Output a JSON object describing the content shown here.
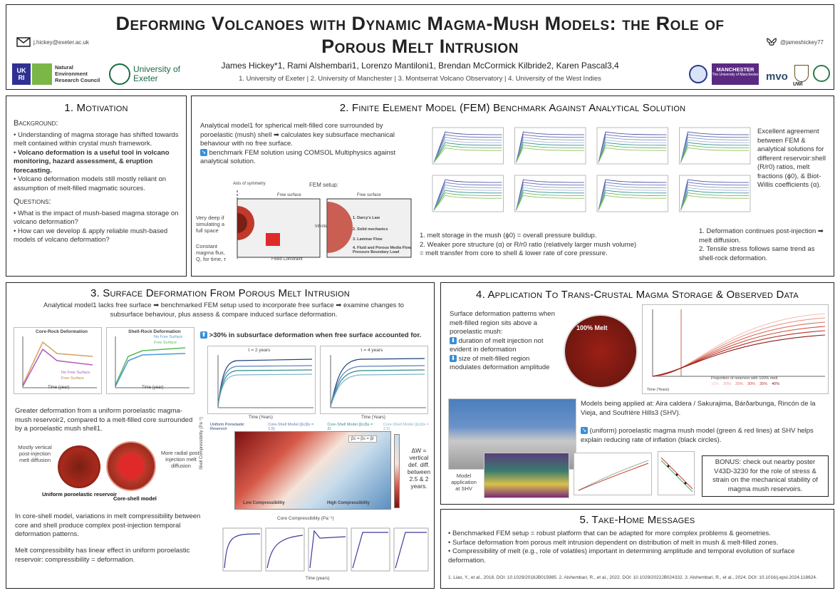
{
  "header": {
    "title_line1": "Deforming Volcanoes with Dynamic Magma-Mush Models: the Role of",
    "title_line2": "Porous Melt Intrusion",
    "email": "j.hickey@exeter.ac.uk",
    "handle": "@jameshickey77",
    "authors": "James Hickey*1, Rami Alshembari1, Lorenzo Mantiloni1, Brendan McCormick Kilbride2, Karen Pascal3,4",
    "affiliations": "1. University of Exeter | 2. University of Manchester | 3. Montserrat Volcano Observatory | 4. University of the West Indies",
    "logo_ukri": "UKRI",
    "logo_nerc": "Natural Environment Research Council",
    "logo_exeter": "University of Exeter",
    "logo_manchester": "MANCHESTER",
    "logo_manchester_sub": "The University of Manchester",
    "logo_mvo": "mvo",
    "logo_uwi": "UWI"
  },
  "s1": {
    "title": "1. Motivation",
    "bg_head": "Background:",
    "bg1": "Understanding of magma storage has shifted towards melt contained within crystal mush framework.",
    "bg2": "Volcano deformation is a useful tool in volcano monitoring, hazard assessment, & eruption forecasting.",
    "bg3": "Volcano deformation models still mostly reliant on assumption of melt-filled magmatic sources.",
    "q_head": "Questions:",
    "q1": "What is the impact of mush-based magma storage on volcano deformation?",
    "q2": "How can we develop & apply reliable mush-based models of volcano deformation?"
  },
  "s2": {
    "title": "2. Finite Element Model (FEM) Benchmark Against Analytical Solution",
    "intro": "Analytical model1 for spherical melt-filled core surrounded by poroelastic (mush) shell ➡ calculates key subsurface mechanical behaviour with no free surface.",
    "intro2": "benchmark FEM solution using COMSOL Multiphysics against analytical solution.",
    "fem_setup": "FEM setup:",
    "axis_sym": "Axis of symmetry",
    "free_surface": "Free surface",
    "free_surface2": "Free surface",
    "infinite": "Infinite",
    "fixed": "Fixed Constraint",
    "very_deep": "Very deep if simulating a full space",
    "const_flux": "Constant magma flux, Q, for time, τ",
    "l1": "1. Darcy's Law",
    "l2": "2. Solid mechanics",
    "l3": "3. Laminar Flow",
    "l4": "4. Fluid and Porous Media Flow Pressure Boundary Load",
    "right_text": "Excellent agreement between FEM & analytical solutions for different reservoir:shell (R/r0) ratios, melt fractions (ϕ0), & Biot-Willis coefficients (α).",
    "b1": "1. melt storage in the mush (ϕ0) = overall pressure buildup.",
    "b2": "2. Weaker pore structure (α) or R/r0 ratio (relatively larger mush volume)",
    "b3": "= melt transfer from core to shell & lower rate of core pressure.",
    "c1": "1. Deformation continues post-injection ➡ melt diffusion.",
    "c2": "2. Tensile stress follows same trend as shell-rock deformation."
  },
  "s3": {
    "title": "3. Surface Deformation From Porous Melt Intrusion",
    "intro": "Analytical model1 lacks free surface ➡ benchmarked FEM setup used to incorporate free surface ➡ examine changes to subsurface behaviour, plus assess & compare induced surface deformation.",
    "p30": ">30% in subsurface deformation when free surface accounted for.",
    "cr_title": "Core-Rock Deformation",
    "sr_title": "Shell-Rock Deformation",
    "lg_nofree": "No Free Surface",
    "lg_free": "Free Surface",
    "time_year": "Time (year)",
    "t2": "τ = 2 years",
    "t4": "τ = 4 years",
    "time_years": "Time (Years)",
    "leg1": "Uniform Poroelastic Reservoir",
    "leg2": "Core-Shell Model (βc/βs = 1.5)",
    "leg3": "Core-Shell Model (βc/βs = 2)",
    "leg4": "Core-Shell Model (βc/βs = 2.5)",
    "greater": "Greater deformation from a uniform poroelastic magma-mush reservoir2, compared to a melt-filled core surrounded by a poroelastic mush shell1.",
    "mostly_vert": "Mostly vertical post-injection melt diffusion",
    "more_radial": "More radial post-injection melt diffusion",
    "uniform_label": "Uniform poroelastic reservoir",
    "coreshell_label": "Core-shell model",
    "heat_xlabel": "Core Compressibility (Pa⁻¹)",
    "heat_ylabel": "Shell Compressibility (Pa⁻¹)",
    "heat_legend": "βc = βs = βr",
    "low_comp": "Low Compressibility",
    "high_comp": "High Compressibility",
    "high_comp_y": "High Compressibility",
    "low_comp_y": "Low Compressibility",
    "dw": "ΔW = vertical def. diff. between 2.5 & 2 years.",
    "variations": "In core-shell model, variations in melt compressibility between core and shell produce complex post-injection temporal deformation patterns.",
    "linear": "Melt compressibility has linear effect in uniform poroelastic reservoir: compressibility = deformation.",
    "time_bottom": "Time (years)"
  },
  "s4": {
    "title": "4. Application To Trans-Crustal Magma Storage & Observed Data",
    "surf_text": "Surface deformation patterns when melt-filled region sits above a poroelastic mush:",
    "d1": "duration of melt injection not evident in deformation",
    "d2": "size of melt-filled region modulates deformation amplitude",
    "melt100": "100% Melt",
    "prop_legend": "Proportion of reservoir with 100% melt",
    "prop_items": [
      "10%",
      "20%",
      "25%",
      "30%",
      "35%",
      "40%"
    ],
    "time_years": "Time (Years)",
    "models_text": "Models being applied at: Aira caldera / Sakurajima, Bárðarbunga, Rincón de la Vieja, and Soufrière Hills3 (SHV).",
    "uniform_text": "(uniform) poroelastic magma mush model (green & red lines) at SHV helps explain reducing rate of inflation (black circles).",
    "model_app": "Model application at SHV",
    "bonus": "BONUS: check out nearby poster V43D-3230 for the role of stress & strain on the mechanical stability of magma mush reservoirs."
  },
  "s5": {
    "title": "5. Take-Home Messages",
    "m1": "Benchmarked FEM setup = robust platform that can be adapted for more complex problems & geometries.",
    "m2": "Surface deformation from porous melt intrusion dependent on distribution of melt in mush & melt-filled zones.",
    "m3": "Compressibility of melt (e.g., role of volatiles) important in determining amplitude and temporal evolution of surface deformation.",
    "refs": "1. Liao, Y., et al., 2018. DOI: 10.1029/2018JB015985. 2. Alshembari, R., et al., 2022. DOI: 10.1029/2022JB024332. 3. Alshembari, R., et al., 2024. DOI: 10.1016/j.epsl.2024.118624."
  },
  "colors": {
    "blue_arrow": "#3a8fd6",
    "red": "#c0392b",
    "green": "#4caf50",
    "nerc_green": "#7ab648",
    "ukri_blue": "#2e3192"
  }
}
